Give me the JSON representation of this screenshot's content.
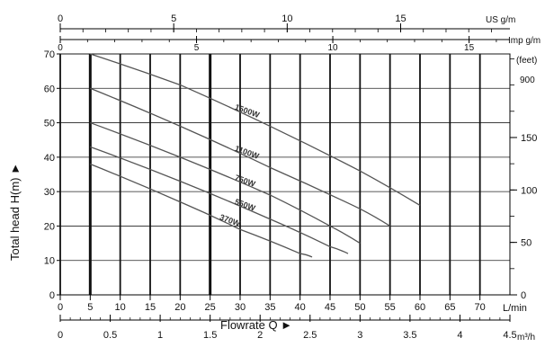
{
  "chart_data": {
    "type": "line",
    "x_label": "Flowrate  Q ►",
    "y_label": "Total head H(m) ►",
    "x_unit_label": "L/min",
    "x_range": [
      0,
      75
    ],
    "y_range": [
      0,
      70
    ],
    "x_ticks": [
      "0",
      "5",
      "10",
      "15",
      "20",
      "25",
      "30",
      "35",
      "40",
      "45",
      "50",
      "55",
      "60",
      "65",
      "70"
    ],
    "y_ticks": [
      "0",
      "10",
      "20",
      "30",
      "40",
      "50",
      "60",
      "70"
    ],
    "right_ticks": [
      "0",
      "50",
      "100",
      "150"
    ],
    "right_label_top": "(feet)",
    "right_label_top2": "900",
    "top_axis1_ticks": [
      "0",
      "5",
      "10",
      "15"
    ],
    "top_axis1_label": "US g/m",
    "top_axis2_ticks": [
      "0",
      "5",
      "10",
      "15"
    ],
    "top_axis2_label": "Imp g/m",
    "bottom_axis2_ticks": [
      "0",
      "0.5",
      "1",
      "1.5",
      "2",
      "2.5",
      "3",
      "3.5",
      "4",
      "4.5"
    ],
    "bottom_axis2_unit": "m³/h",
    "series": [
      {
        "name": "1500W",
        "x": [
          5,
          20,
          35,
          50,
          60
        ],
        "y": [
          70,
          61,
          49,
          36,
          26
        ]
      },
      {
        "name": "1100W",
        "x": [
          5,
          20,
          35,
          50,
          55
        ],
        "y": [
          60,
          49,
          37,
          25,
          20
        ]
      },
      {
        "name": "750W",
        "x": [
          5,
          20,
          35,
          45,
          50
        ],
        "y": [
          50,
          40,
          29,
          20,
          15
        ]
      },
      {
        "name": "550W",
        "x": [
          5,
          20,
          35,
          45,
          48
        ],
        "y": [
          43,
          33,
          22,
          14,
          12
        ]
      },
      {
        "name": "370W",
        "x": [
          5,
          20,
          30,
          40,
          42
        ],
        "y": [
          38,
          27,
          19,
          12,
          11
        ]
      }
    ]
  }
}
